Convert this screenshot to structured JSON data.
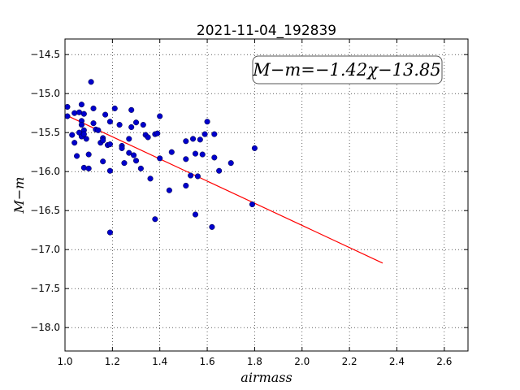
{
  "chart_data": {
    "type": "scatter",
    "title": "2021-11-04_192839",
    "xlabel": "airmass",
    "ylabel": "M−m",
    "xlim": [
      1.0,
      2.7
    ],
    "ylim": [
      -18.3,
      -14.3
    ],
    "x_ticks": [
      1.0,
      1.2,
      1.4,
      1.6,
      1.8,
      2.0,
      2.2,
      2.4,
      2.6
    ],
    "x_tick_labels": [
      "1.0",
      "1.2",
      "1.4",
      "1.6",
      "1.8",
      "2.0",
      "2.2",
      "2.4",
      "2.6"
    ],
    "y_ticks": [
      -14.5,
      -15.0,
      -15.5,
      -16.0,
      -16.5,
      -17.0,
      -17.5,
      -18.0
    ],
    "y_tick_labels": [
      "−14.5",
      "−15.0",
      "−15.5",
      "−16.0",
      "−16.5",
      "−17.0",
      "−17.5",
      "−18.0"
    ],
    "grid": true,
    "annotation": "M−m=−1.42χ−13.85",
    "fit_line": {
      "slope": -1.42,
      "intercept": -13.85,
      "x_range": [
        1.02,
        2.34
      ],
      "color": "#ff0000"
    },
    "marker_color": "#0000cc",
    "points": [
      [
        1.01,
        -15.17
      ],
      [
        1.01,
        -15.29
      ],
      [
        1.03,
        -15.53
      ],
      [
        1.04,
        -15.63
      ],
      [
        1.04,
        -15.25
      ],
      [
        1.05,
        -15.8
      ],
      [
        1.06,
        -15.24
      ],
      [
        1.06,
        -15.5
      ],
      [
        1.07,
        -15.14
      ],
      [
        1.07,
        -15.35
      ],
      [
        1.07,
        -15.4
      ],
      [
        1.07,
        -15.55
      ],
      [
        1.08,
        -15.26
      ],
      [
        1.08,
        -15.47
      ],
      [
        1.08,
        -15.52
      ],
      [
        1.08,
        -15.95
      ],
      [
        1.09,
        -15.58
      ],
      [
        1.1,
        -15.96
      ],
      [
        1.1,
        -15.78
      ],
      [
        1.11,
        -14.85
      ],
      [
        1.12,
        -15.19
      ],
      [
        1.12,
        -15.38
      ],
      [
        1.13,
        -15.46
      ],
      [
        1.14,
        -15.47
      ],
      [
        1.15,
        -15.63
      ],
      [
        1.16,
        -15.57
      ],
      [
        1.16,
        -15.6
      ],
      [
        1.16,
        -15.87
      ],
      [
        1.17,
        -15.27
      ],
      [
        1.18,
        -15.66
      ],
      [
        1.19,
        -15.36
      ],
      [
        1.19,
        -15.65
      ],
      [
        1.19,
        -15.99
      ],
      [
        1.19,
        -16.78
      ],
      [
        1.21,
        -15.19
      ],
      [
        1.23,
        -15.4
      ],
      [
        1.24,
        -15.67
      ],
      [
        1.24,
        -15.7
      ],
      [
        1.25,
        -15.89
      ],
      [
        1.27,
        -15.58
      ],
      [
        1.27,
        -15.76
      ],
      [
        1.28,
        -15.21
      ],
      [
        1.28,
        -15.43
      ],
      [
        1.29,
        -15.79
      ],
      [
        1.3,
        -15.37
      ],
      [
        1.3,
        -15.86
      ],
      [
        1.32,
        -15.96
      ],
      [
        1.33,
        -15.4
      ],
      [
        1.34,
        -15.53
      ],
      [
        1.35,
        -15.56
      ],
      [
        1.36,
        -16.09
      ],
      [
        1.38,
        -15.52
      ],
      [
        1.38,
        -16.61
      ],
      [
        1.39,
        -15.51
      ],
      [
        1.4,
        -15.83
      ],
      [
        1.4,
        -15.29
      ],
      [
        1.44,
        -16.24
      ],
      [
        1.45,
        -15.75
      ],
      [
        1.51,
        -15.61
      ],
      [
        1.51,
        -15.84
      ],
      [
        1.51,
        -16.18
      ],
      [
        1.53,
        -16.05
      ],
      [
        1.54,
        -15.58
      ],
      [
        1.55,
        -15.77
      ],
      [
        1.55,
        -16.55
      ],
      [
        1.56,
        -16.06
      ],
      [
        1.57,
        -15.59
      ],
      [
        1.58,
        -15.78
      ],
      [
        1.59,
        -15.52
      ],
      [
        1.6,
        -15.36
      ],
      [
        1.62,
        -16.71
      ],
      [
        1.63,
        -15.52
      ],
      [
        1.63,
        -15.82
      ],
      [
        1.65,
        -15.99
      ],
      [
        1.7,
        -15.89
      ],
      [
        1.79,
        -16.42
      ],
      [
        1.8,
        -15.7
      ]
    ]
  }
}
